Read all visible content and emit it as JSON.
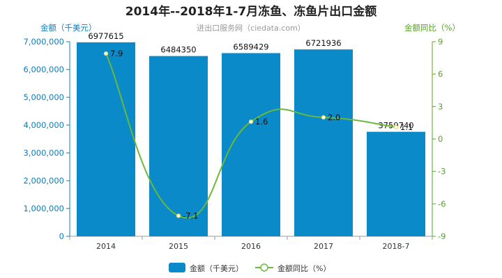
{
  "chart_data": {
    "type": "bar",
    "title": "2014年--2018年1-7月冻鱼、冻鱼片出口金额",
    "subtitle": "进出口服务网（ciedata.com）",
    "categories": [
      "2014",
      "2015",
      "2016",
      "2017",
      "2018-7"
    ],
    "series": [
      {
        "name": "金额（千美元）",
        "type": "bar",
        "axis": "left",
        "color": "#0a8ac8",
        "values": [
          6977615,
          6484350,
          6589429,
          6721936,
          3759740
        ],
        "labels": [
          "6977615",
          "6484350",
          "6589429",
          "6721936",
          "3759740"
        ]
      },
      {
        "name": "金额同比（%）",
        "type": "line",
        "axis": "right",
        "color": "#6ab93a",
        "values": [
          7.9,
          -7.1,
          1.6,
          2.0,
          1.1
        ],
        "labels": [
          "7.9",
          "-7.1",
          "1.6",
          "2.0",
          "1.1"
        ]
      }
    ],
    "ylabel_left": "金额（千美元）",
    "ylabel_right": "金额同比（%）",
    "ylim_left": [
      0,
      7000000
    ],
    "ylim_right": [
      -9,
      9
    ],
    "yticks_left": [
      "0",
      "1,000,000",
      "2,000,000",
      "3,000,000",
      "4,000,000",
      "5,000,000",
      "6,000,000",
      "7,000,000"
    ],
    "yticks_right": [
      "-9",
      "-6",
      "-3",
      "0",
      "3",
      "6",
      "9"
    ],
    "grid": false,
    "legend_position": "bottom"
  }
}
